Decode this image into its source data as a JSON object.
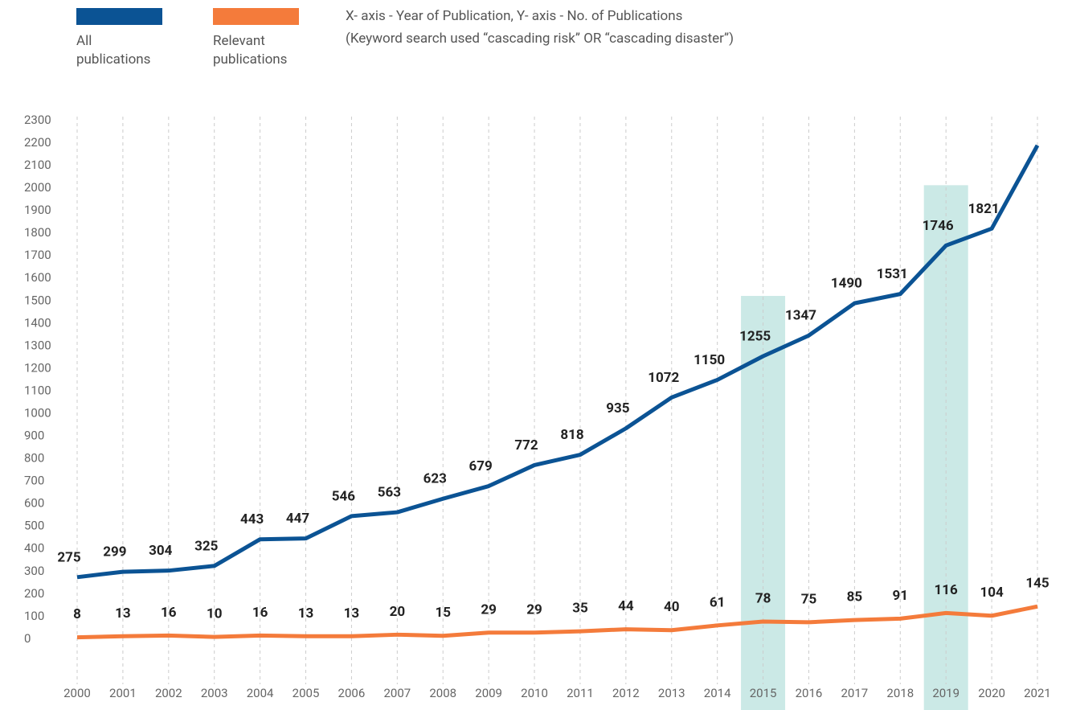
{
  "chart_data": {
    "type": "line",
    "notes": [
      "X- axis - Year of Publication, Y- axis - No. of Publications",
      "(Keyword search used “cascading risk” OR “cascading disaster”)"
    ],
    "categories": [
      "2000",
      "2001",
      "2002",
      "2003",
      "2004",
      "2005",
      "2006",
      "2007",
      "2008",
      "2009",
      "2010",
      "2011",
      "2012",
      "2013",
      "2014",
      "2015",
      "2016",
      "2017",
      "2018",
      "2019",
      "2020",
      "2021"
    ],
    "highlight": [
      "2015",
      "2019"
    ],
    "highlight_color": "#cbe9e6",
    "series": [
      {
        "name": "All publications",
        "color": "#0b5394",
        "values": [
          275,
          299,
          304,
          325,
          443,
          447,
          546,
          563,
          623,
          679,
          772,
          818,
          935,
          1072,
          1150,
          1255,
          1347,
          1490,
          1531,
          1746,
          1821,
          2190
        ],
        "value_labels": [
          "275",
          "299",
          "304",
          "325",
          "443",
          "447",
          "546",
          "563",
          "623",
          "679",
          "772",
          "818",
          "935",
          "1072",
          "1150",
          "1255",
          "1347",
          "1490",
          "1531",
          "1746",
          "1821",
          null
        ]
      },
      {
        "name": "Relevant publications",
        "color": "#f47b3b",
        "values": [
          8,
          13,
          16,
          10,
          16,
          13,
          13,
          20,
          15,
          29,
          29,
          35,
          44,
          40,
          61,
          78,
          75,
          85,
          91,
          116,
          104,
          145
        ]
      }
    ],
    "ylim": [
      -200,
      2300
    ],
    "yticks": [
      0,
      100,
      200,
      300,
      400,
      500,
      600,
      700,
      800,
      900,
      1000,
      1100,
      1200,
      1300,
      1400,
      1500,
      1600,
      1700,
      1800,
      1900,
      2000,
      2100,
      2200,
      2300
    ],
    "grid": true
  }
}
